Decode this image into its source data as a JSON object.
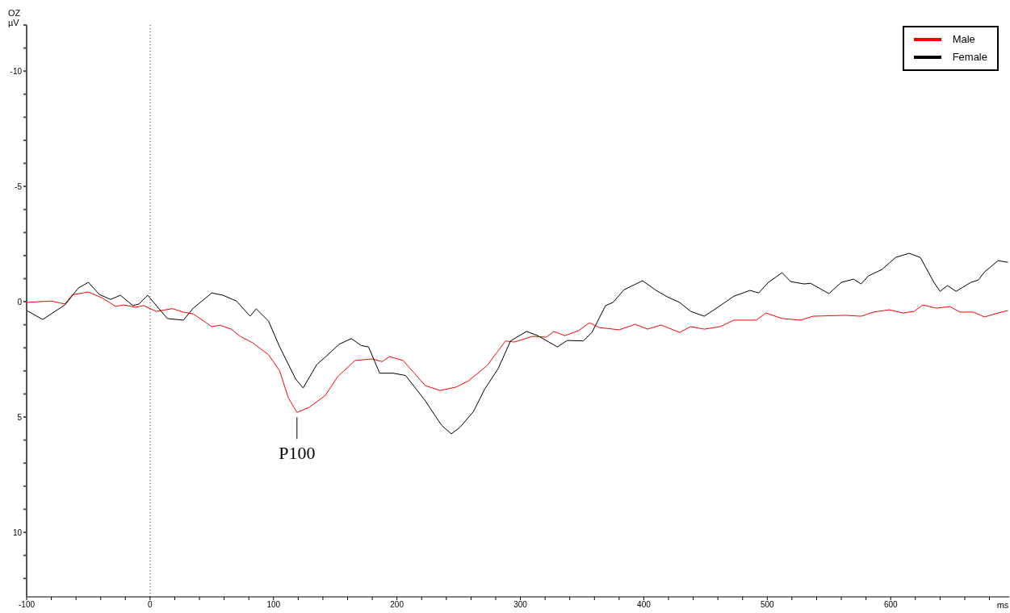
{
  "chart_data": {
    "type": "line",
    "title": "OZ",
    "ylabel": "µV",
    "xlabel": "ms",
    "xlim": [
      -100,
      696
    ],
    "xticks": [
      -100,
      {
        "value": -80,
        "label": null
      },
      {
        "value": -60,
        "label": null
      },
      {
        "value": -40,
        "label": null
      },
      {
        "value": -20,
        "label": null
      },
      0,
      {
        "value": 20,
        "label": null
      },
      {
        "value": 40,
        "label": null
      },
      {
        "value": 60,
        "label": null
      },
      {
        "value": 80,
        "label": null
      },
      100,
      {
        "value": 120,
        "label": null
      },
      {
        "value": 140,
        "label": null
      },
      {
        "value": 160,
        "label": null
      },
      {
        "value": 180,
        "label": null
      },
      200,
      {
        "value": 220,
        "label": null
      },
      {
        "value": 240,
        "label": null
      },
      {
        "value": 260,
        "label": null
      },
      {
        "value": 280,
        "label": null
      },
      300,
      {
        "value": 320,
        "label": null
      },
      {
        "value": 340,
        "label": null
      },
      {
        "value": 360,
        "label": null
      },
      {
        "value": 380,
        "label": null
      },
      400,
      {
        "value": 420,
        "label": null
      },
      {
        "value": 440,
        "label": null
      },
      {
        "value": 460,
        "label": null
      },
      {
        "value": 480,
        "label": null
      },
      500,
      {
        "value": 520,
        "label": null
      },
      {
        "value": 540,
        "label": null
      },
      {
        "value": 560,
        "label": null
      },
      {
        "value": 580,
        "label": null
      },
      600,
      {
        "value": 620,
        "label": null
      },
      {
        "value": 640,
        "label": null
      },
      {
        "value": 660,
        "label": null
      },
      {
        "value": 680,
        "label": null
      }
    ],
    "ylim": [
      12.8,
      -12
    ],
    "yticks": [
      {
        "value": -12,
        "label": null
      },
      {
        "value": -11,
        "label": null
      },
      -10,
      {
        "value": -9,
        "label": null
      },
      {
        "value": -8,
        "label": null
      },
      {
        "value": -7,
        "label": null
      },
      {
        "value": -6,
        "label": null
      },
      -5,
      {
        "value": -4,
        "label": null
      },
      {
        "value": -3,
        "label": null
      },
      {
        "value": -2,
        "label": null
      },
      {
        "value": -1,
        "label": null
      },
      0,
      {
        "value": 1,
        "label": null
      },
      {
        "value": 2,
        "label": null
      },
      {
        "value": 3,
        "label": null
      },
      {
        "value": 4,
        "label": null
      },
      5,
      {
        "value": 6,
        "label": null
      },
      {
        "value": 7,
        "label": null
      },
      {
        "value": 8,
        "label": null
      },
      {
        "value": 9,
        "label": null
      },
      10,
      {
        "value": 11,
        "label": null
      },
      {
        "value": 12,
        "label": null
      }
    ],
    "legend": "top right",
    "marker": "none",
    "line_style": "solid",
    "ref_lines": [
      {
        "axis": "x",
        "value": 0,
        "color": "#808080",
        "line_style": "dotted"
      }
    ],
    "annotations": [
      {
        "text": "P100",
        "x": 119,
        "y": 4.8
      }
    ],
    "series": [
      {
        "name": "Male",
        "color": "#ff0000",
        "x": [
          -100,
          -80,
          -69,
          -63,
          -50,
          -39,
          -28,
          -21,
          -12,
          -5,
          5,
          18,
          27,
          35,
          50,
          57,
          66,
          73,
          83,
          96,
          105,
          112,
          119,
          129,
          142,
          152,
          166,
          180,
          188,
          194,
          205,
          223,
          235,
          248,
          258,
          273,
          288,
          295,
          310,
          321,
          327,
          336,
          347,
          356,
          364,
          380,
          393,
          403,
          414,
          429,
          438,
          449,
          462,
          473,
          491,
          499,
          512,
          527,
          537,
          563,
          576,
          586,
          599,
          610,
          619,
          626,
          637,
          648,
          656,
          667,
          676,
          687,
          695
        ],
        "values": [
          0.03,
          -0.03,
          0.1,
          -0.3,
          -0.42,
          -0.17,
          0.2,
          0.14,
          0.24,
          0.17,
          0.42,
          0.3,
          0.45,
          0.53,
          1.08,
          1.02,
          1.2,
          1.5,
          1.78,
          2.3,
          3,
          4.17,
          4.8,
          4.58,
          4.06,
          3.25,
          2.55,
          2.48,
          2.6,
          2.38,
          2.55,
          3.64,
          3.85,
          3.7,
          3.43,
          2.77,
          1.7,
          1.75,
          1.5,
          1.54,
          1.29,
          1.47,
          1.26,
          0.91,
          1.12,
          1.22,
          0.98,
          1.19,
          1.01,
          1.33,
          1.08,
          1.19,
          1.08,
          0.8,
          0.8,
          0.49,
          0.73,
          0.8,
          0.63,
          0.59,
          0.63,
          0.45,
          0.35,
          0.49,
          0.42,
          0.14,
          0.28,
          0.21,
          0.45,
          0.45,
          0.66,
          0.49,
          0.38
        ]
      },
      {
        "name": "Female",
        "color": "#000000",
        "x": [
          -100,
          -87,
          -69,
          -58,
          -50,
          -41,
          -32,
          -24,
          -14,
          -9,
          -2,
          14,
          27,
          35,
          50,
          59,
          70,
          81,
          86,
          96,
          105,
          118,
          124,
          135,
          144,
          153,
          163,
          171,
          177,
          186,
          197,
          207,
          223,
          236,
          244,
          251,
          262,
          271,
          282,
          292,
          305,
          314,
          330,
          338,
          351,
          358,
          369,
          375,
          384,
          399,
          410,
          419,
          429,
          438,
          449,
          460,
          473,
          486,
          493,
          501,
          512,
          519,
          530,
          535,
          550,
          560,
          570,
          576,
          582,
          593,
          604,
          615,
          624,
          635,
          640,
          646,
          653,
          665,
          671,
          676,
          687,
          695
        ],
        "values": [
          0.38,
          0.77,
          0.14,
          -0.6,
          -0.84,
          -0.31,
          -0.1,
          -0.28,
          0.17,
          0.1,
          -0.28,
          0.73,
          0.8,
          0.28,
          -0.38,
          -0.28,
          -0.03,
          0.63,
          0.31,
          0.84,
          1.96,
          3.36,
          3.74,
          2.73,
          2.3,
          1.85,
          1.6,
          1.9,
          1.96,
          3.1,
          3.1,
          3.2,
          4.3,
          5.35,
          5.73,
          5.45,
          4.76,
          3.8,
          2.9,
          1.7,
          1.29,
          1.47,
          1.96,
          1.68,
          1.7,
          1.33,
          0.17,
          0.03,
          -0.52,
          -0.91,
          -0.49,
          -0.21,
          0.03,
          0.42,
          0.63,
          0.24,
          -0.24,
          -0.49,
          -0.38,
          -0.84,
          -1.26,
          -0.87,
          -0.77,
          -0.8,
          -0.35,
          -0.84,
          -0.98,
          -0.77,
          -1.12,
          -1.4,
          -1.92,
          -2.1,
          -1.92,
          -0.84,
          -0.45,
          -0.7,
          -0.45,
          -0.84,
          -0.94,
          -1.29,
          -1.78,
          -1.71
        ]
      }
    ]
  }
}
